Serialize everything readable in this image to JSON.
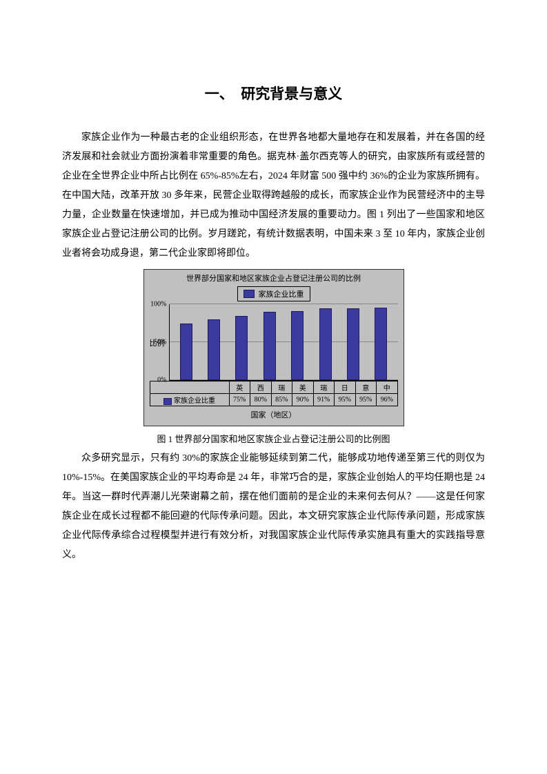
{
  "title": "一、　研究背景与意义",
  "para1": "家族企业作为一种最古老的企业组织形态，在世界各地都大量地存在和发展着，并在各国的经济发展和社会就业方面扮演着非常重要的角色。据克林·盖尔西克等人的研究，由家族所有或经营的企业在全世界企业中所占比例在 65%-85%左右，2024 年财富 500 强中约 36%的企业为家族所拥有。在中国大陆，改革开放 30 多年来，民营企业取得跨越般的成长，而家族企业作为民营经济中的主导力量，企业数量在快速增加，并已成为推动中国经济发展的重要动力。图 1 列出了一些国家和地区家族企业占登记注册公司的比例。岁月蹉跎，有统计数据表明，中国未来 3 至 10 年内，家族企业创业者将会功成身退，第二代企业家即将即位。",
  "para2": "众多研究显示，只有约 30%的家族企业能够延续到第二代，能够成功地传递至第三代的则仅为 10%-15%。在美国家族企业的平均寿命是 24 年，非常巧合的是，家族企业创始人的平均任期也是 24 年。当这一群时代弄潮儿光荣谢幕之前，摆在他们面前的是企业的未来何去何从？——这是任何家族企业在成长过程都不能回避的代际传承问题。因此，本文研究家族企业代际传承问题，形成家族企业代际传承综合过程模型并进行有效分析，对我国家族企业代际传承实施具有重大的实践指导意义。",
  "caption": "图 1 世界部分国家和地区家族企业占登记注册公司的比例图",
  "chart": {
    "type": "bar",
    "title": "世界部分国家和地区家族企业占登记注册公司的比例",
    "legend_label": "家族企业比重",
    "ylabel": "比例",
    "xlabel": "国家（地区）",
    "row_label": "家族企业比重",
    "categories": [
      "英",
      "西",
      "瑞",
      "美",
      "瑞",
      "日",
      "意",
      "中"
    ],
    "values": [
      75,
      80,
      85,
      90,
      91,
      95,
      95,
      96
    ],
    "value_labels": [
      "75%",
      "80%",
      "85%",
      "90%",
      "91%",
      "95%",
      "95%",
      "96%"
    ],
    "yticks": [
      0,
      50,
      100
    ],
    "ytick_labels": [
      "0%",
      "50%",
      "100%"
    ],
    "bar_color": "#3b3b9f",
    "bar_border": "#1a1a5e",
    "background_color": "#c0c0c0",
    "grid_color": "#888888",
    "text_color": "#000000",
    "title_fontsize": 11,
    "label_fontsize": 11,
    "tick_fontsize": 10,
    "ymax": 100
  }
}
